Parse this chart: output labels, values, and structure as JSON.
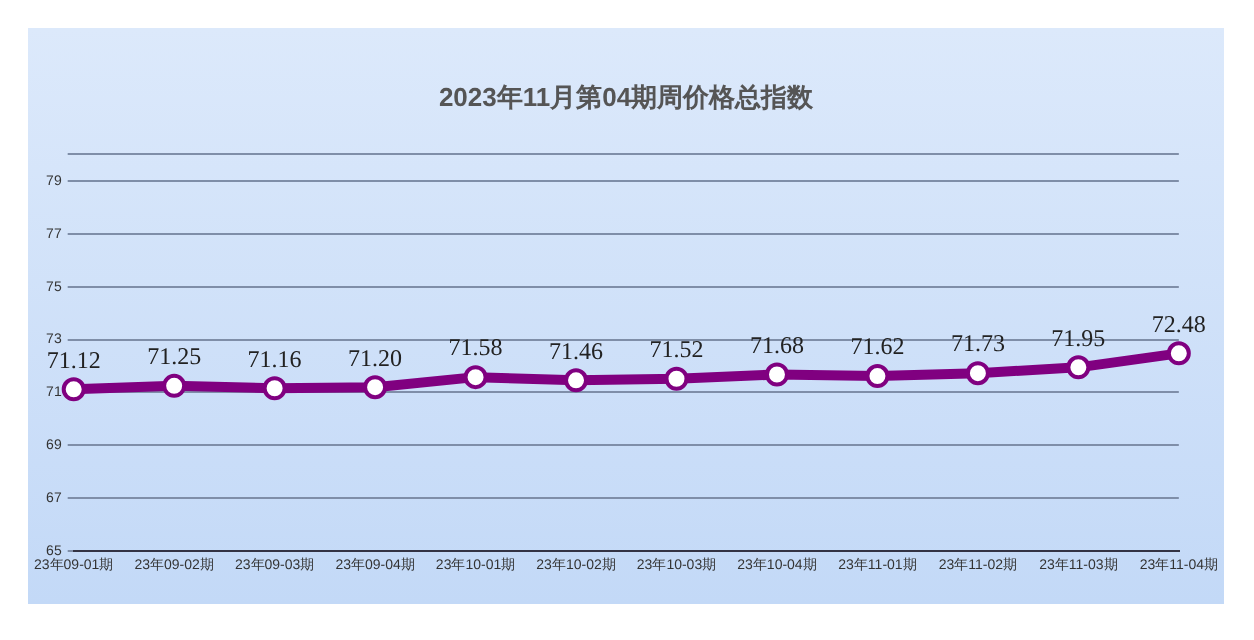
{
  "chart_data": {
    "type": "line",
    "title": "2023年11月第04期周价格总指数",
    "categories": [
      "23年09-01期",
      "23年09-02期",
      "23年09-03期",
      "23年09-04期",
      "23年10-01期",
      "23年10-02期",
      "23年10-03期",
      "23年10-04期",
      "23年11-01期",
      "23年11-02期",
      "23年11-03期",
      "23年11-04期"
    ],
    "values": [
      71.12,
      71.25,
      71.16,
      71.2,
      71.58,
      71.46,
      71.52,
      71.68,
      71.62,
      71.73,
      71.95,
      72.48
    ],
    "color": "#800080",
    "ylim": [
      65,
      80
    ],
    "yticks": [
      65,
      67,
      69,
      71,
      73,
      75,
      77,
      79,
      {
        "value": 80,
        "label": null
      }
    ],
    "value_labels": [
      "71.12",
      "71.25",
      "71.16",
      "71.20",
      "71.58",
      "71.46",
      "71.52",
      "71.68",
      "71.62",
      "71.73",
      "71.95",
      "72.48"
    ],
    "grid": "y",
    "legend": false,
    "marker": "circle",
    "line_style": "solid"
  }
}
